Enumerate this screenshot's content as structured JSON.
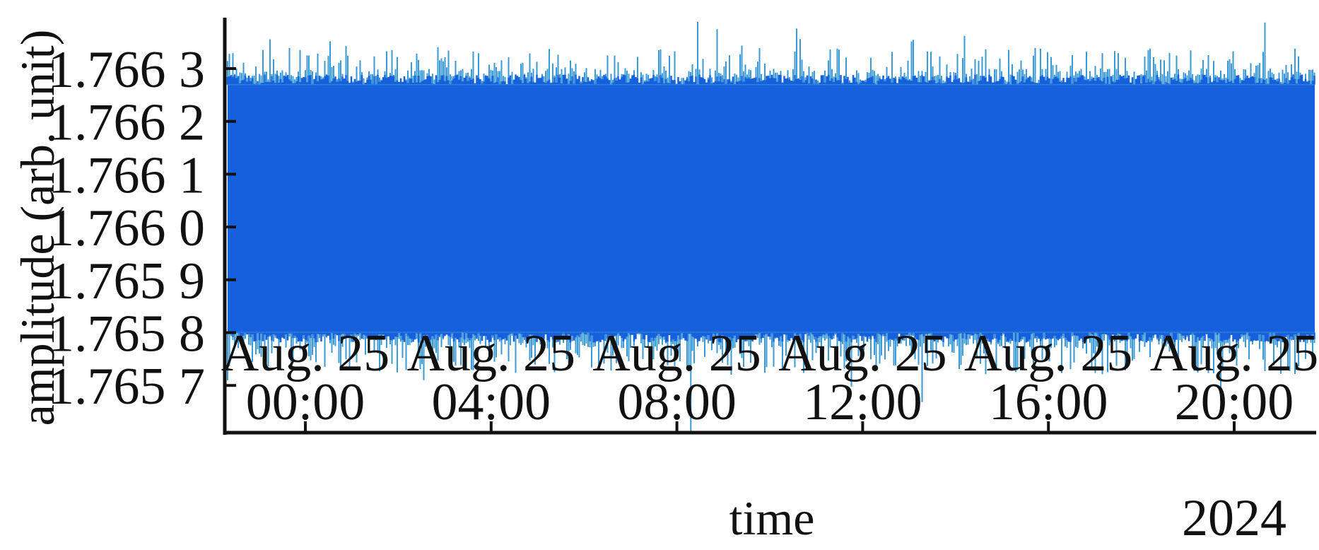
{
  "chart_data": {
    "type": "line",
    "title": "",
    "xlabel": "time",
    "ylabel": "amplitude (arb. unit)",
    "x_unit": "hours on 2024-08-25",
    "xlim": [
      "2024-08-24 22:16",
      "2024-08-25 21:46"
    ],
    "ylim": [
      1.76561,
      1.76639
    ],
    "x_ticks": [
      {
        "hour": 0,
        "line1": "Aug. 25",
        "line2": "00:00"
      },
      {
        "hour": 4,
        "line1": "Aug. 25",
        "line2": "04:00"
      },
      {
        "hour": 8,
        "line1": "Aug. 25",
        "line2": "08:00"
      },
      {
        "hour": 12,
        "line1": "Aug. 25",
        "line2": "12:00"
      },
      {
        "hour": 16,
        "line1": "Aug. 25",
        "line2": "16:00"
      },
      {
        "hour": 20,
        "line1": "Aug. 25",
        "line2": "20:00"
      }
    ],
    "x_offset_label": "2024",
    "y_ticks": [
      {
        "value": 1.7663,
        "label": "1.766 3"
      },
      {
        "value": 1.7662,
        "label": "1.766 2"
      },
      {
        "value": 1.7661,
        "label": "1.766 1"
      },
      {
        "value": 1.766,
        "label": "1.766 0"
      },
      {
        "value": 1.7659,
        "label": "1.765 9"
      },
      {
        "value": 1.7658,
        "label": "1.765 8"
      },
      {
        "value": 1.7657,
        "label": "1.765 7"
      }
    ],
    "series": [
      {
        "dense_band": [
          1.7658,
          1.76627
        ],
        "typical_spike_range": [
          1.76572,
          1.76634
        ],
        "max": 1.76639,
        "min": 1.76561
      }
    ],
    "grid": false,
    "legend": "none",
    "colors": {
      "band": "#1560dc",
      "spikes": "#3a9ad6",
      "axis": "#111111"
    }
  }
}
